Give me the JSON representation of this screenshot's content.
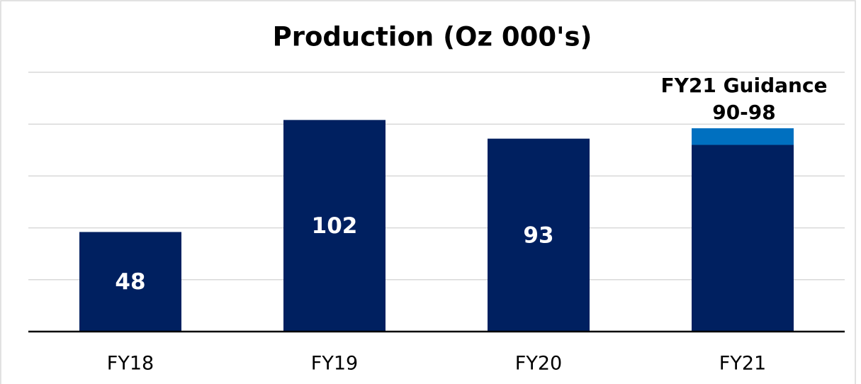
{
  "chart_data": {
    "type": "stacked_bar",
    "title": "Production (Oz 000's)",
    "categories": [
      "FY18",
      "FY19",
      "FY20",
      "FY21"
    ],
    "series": [
      {
        "color": "#002060",
        "values": [
          48,
          102,
          93,
          90
        ],
        "value_labels": [
          "48",
          "102",
          "93",
          null
        ]
      },
      {
        "color": "#0070c0",
        "values": [
          null,
          null,
          null,
          8
        ]
      }
    ],
    "annotation": [
      "FY21 Guidance",
      "90-98"
    ],
    "ylim": [
      0,
      125
    ],
    "yticks": [
      0,
      25,
      50,
      75,
      100,
      125
    ],
    "grid": true
  }
}
